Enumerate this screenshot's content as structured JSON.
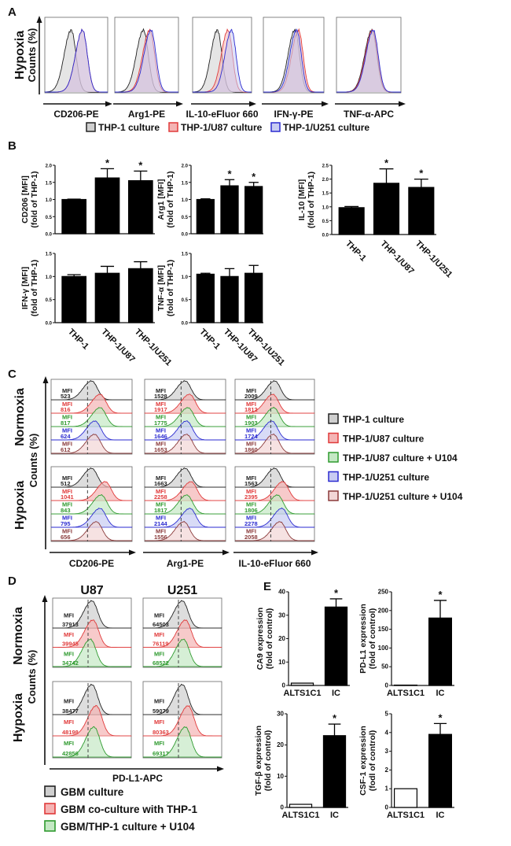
{
  "panel_labels": [
    "A",
    "B",
    "C",
    "D",
    "E"
  ],
  "colors": {
    "thp1": "#222222",
    "u87": "#e03a3a",
    "u87_u104": "#2e9a2e",
    "u251": "#2b2bd0",
    "u251_u104": "#8a3a3a"
  },
  "fills": {
    "thp1": "#cfcfcf",
    "u87": "#f4b4b4",
    "u87_u104": "#c4e8c4",
    "u251": "#c8ccf2",
    "u251_u104": "#f2d6d6"
  },
  "panel_a": {
    "condition": "Hypoxia",
    "ylabel": "Counts (%)",
    "xlabels": [
      "CD206-PE",
      "Arg1-PE",
      "IL-10-eFluor 660",
      "IFN-γ-PE",
      "TNF-α-APC"
    ],
    "legend": [
      {
        "label": "THP-1 culture",
        "key": "thp1"
      },
      {
        "label": "THP-1/U87 culture",
        "key": "u87"
      },
      {
        "label": "THP-1/U251 culture",
        "key": "u251"
      }
    ]
  },
  "panel_c": {
    "conditions": [
      "Normoxia",
      "Hypoxia"
    ],
    "ylabel": "Counts (%)",
    "mfi_label": "MFI",
    "xlabels": [
      "CD206-PE",
      "Arg1-PE",
      "IL-10-eFluor 660"
    ],
    "legend": [
      {
        "label": "THP-1 culture",
        "key": "thp1"
      },
      {
        "label": "THP-1/U87 culture",
        "key": "u87"
      },
      {
        "label": "THP-1/U87 culture + U104",
        "key": "u87_u104"
      },
      {
        "label": "THP-1/U251 culture",
        "key": "u251"
      },
      {
        "label": "THP-1/U251 culture + U104",
        "key": "u251_u104"
      }
    ],
    "mfi": {
      "normoxia": [
        [
          523,
          816,
          817,
          624,
          612
        ],
        [
          1528,
          1917,
          1775,
          1646,
          1653
        ],
        [
          2009,
          1812,
          1903,
          1724,
          1860
        ]
      ],
      "hypoxia": [
        [
          512,
          1041,
          843,
          795,
          656
        ],
        [
          1663,
          2258,
          1817,
          2144,
          1556
        ],
        [
          1563,
          2395,
          1806,
          2278,
          2058
        ]
      ]
    }
  },
  "panel_d": {
    "titles": [
      "U87",
      "U251"
    ],
    "conditions": [
      "Normoxia",
      "Hypoxia"
    ],
    "ylabel": "Counts (%)",
    "mfi_label": "MFI",
    "xlabel": "PD-L1-APC",
    "legend": [
      {
        "label": "GBM culture",
        "key": "thp1"
      },
      {
        "label": "GBM co-culture with THP-1",
        "key": "u87"
      },
      {
        "label": "GBM/THP-1 culture + U104",
        "key": "u87_u104"
      }
    ],
    "mfi": {
      "normoxia": [
        [
          37913,
          39945,
          34742
        ],
        [
          64503,
          76119,
          68522
        ]
      ],
      "hypoxia": [
        [
          38477,
          48198,
          42856
        ],
        [
          59079,
          80363,
          69317
        ]
      ]
    }
  },
  "chart_data": [
    {
      "type": "bar",
      "panel": "B",
      "ylabel": [
        "CD206 [MFI]",
        "(fold of THP-1)"
      ],
      "values": [
        1.0,
        1.63,
        1.55
      ],
      "errors": [
        0.01,
        0.27,
        0.28
      ],
      "significant": [
        false,
        true,
        true
      ],
      "ylim": [
        0,
        2.0
      ],
      "yticks": [
        "0.0",
        "0.5",
        "1.0",
        "1.5",
        "2.0"
      ]
    },
    {
      "type": "bar",
      "panel": "B",
      "ylabel": [
        "Arg1 [MFI]",
        "(fold of THP-1)"
      ],
      "values": [
        1.0,
        1.4,
        1.38
      ],
      "errors": [
        0.02,
        0.18,
        0.12
      ],
      "significant": [
        false,
        true,
        true
      ],
      "ylim": [
        0,
        2.0
      ],
      "yticks": [
        "0.0",
        "0.5",
        "1.0",
        "1.5",
        "2.0"
      ]
    },
    {
      "type": "bar",
      "panel": "B",
      "ylabel": [
        "IL-10 [MFI]",
        "(fold of THP-1)"
      ],
      "categories": [
        "THP-1",
        "THP-1/U87",
        "THP-1/U251"
      ],
      "values": [
        0.97,
        1.85,
        1.7
      ],
      "errors": [
        0.04,
        0.52,
        0.3
      ],
      "significant": [
        false,
        true,
        true
      ],
      "ylim": [
        0,
        2.5
      ],
      "yticks": [
        "0.0",
        "0.5",
        "1.0",
        "1.5",
        "2.0",
        "2.5"
      ]
    },
    {
      "type": "bar",
      "panel": "B",
      "ylabel": [
        "IFN-γ [MFI]",
        "(fold of THP-1)"
      ],
      "categories": [
        "THP-1",
        "THP-1/U87",
        "THP-1/U251"
      ],
      "values": [
        1.0,
        1.07,
        1.17
      ],
      "errors": [
        0.04,
        0.15,
        0.15
      ],
      "significant": [
        false,
        false,
        false
      ],
      "ylim": [
        0,
        1.5
      ],
      "yticks": [
        "0.0",
        "0.5",
        "1.0",
        "1.5"
      ]
    },
    {
      "type": "bar",
      "panel": "B",
      "ylabel": [
        "TNF-α [MFI]",
        "(fold of THP-1)"
      ],
      "categories": [
        "THP-1",
        "THP-1/U87",
        "THP-1/U251"
      ],
      "values": [
        1.05,
        1.0,
        1.07
      ],
      "errors": [
        0.02,
        0.17,
        0.17
      ],
      "significant": [
        false,
        false,
        false
      ],
      "ylim": [
        0,
        1.5
      ],
      "yticks": [
        "0.0",
        "0.5",
        "1.0",
        "1.5"
      ]
    },
    {
      "type": "bar",
      "panel": "E",
      "ylabel": [
        "CA9 expression",
        "(fold of control)"
      ],
      "categories": [
        "ALTS1C1",
        "IC"
      ],
      "values": [
        1,
        33.5
      ],
      "errors": [
        0,
        3.5
      ],
      "significant": [
        false,
        true
      ],
      "ylim": [
        0,
        40
      ],
      "yticks": [
        "0",
        "10",
        "20",
        "30",
        "40"
      ]
    },
    {
      "type": "bar",
      "panel": "E",
      "ylabel": [
        "PD-L1 expression",
        "(fold of control)"
      ],
      "categories": [
        "ALTS1C1",
        "IC"
      ],
      "values": [
        1,
        180
      ],
      "errors": [
        0,
        47
      ],
      "significant": [
        false,
        true
      ],
      "ylim": [
        0,
        250
      ],
      "yticks": [
        "0",
        "50",
        "100",
        "150",
        "200",
        "250"
      ]
    },
    {
      "type": "bar",
      "panel": "E",
      "ylabel": [
        "TGF-β expression",
        "(fold of control)"
      ],
      "categories": [
        "ALTS1C1",
        "IC"
      ],
      "values": [
        1,
        23
      ],
      "errors": [
        0,
        3.7
      ],
      "significant": [
        false,
        true
      ],
      "ylim": [
        0,
        30
      ],
      "yticks": [
        "0",
        "10",
        "20",
        "30"
      ]
    },
    {
      "type": "bar",
      "panel": "E",
      "ylabel": [
        "CSF-1 expression",
        "(fodl of control)"
      ],
      "categories": [
        "ALTS1C1",
        "IC"
      ],
      "values": [
        1,
        3.9
      ],
      "errors": [
        0,
        0.58
      ],
      "significant": [
        false,
        true
      ],
      "ylim": [
        0,
        5
      ],
      "yticks": [
        "0",
        "1",
        "2",
        "3",
        "4",
        "5"
      ]
    }
  ],
  "significance_marker": "*"
}
